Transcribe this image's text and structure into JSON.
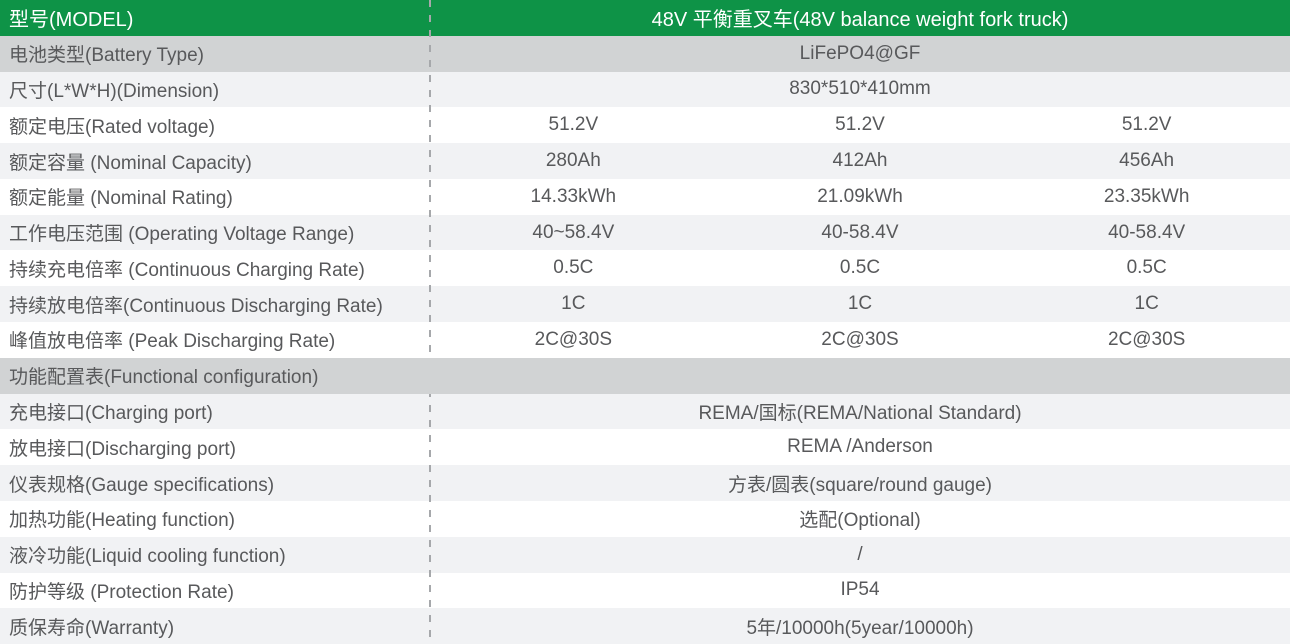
{
  "colors": {
    "header_green": "#0E9347",
    "section_row_gray": "#D1D3D4",
    "zebra_light_gray": "#F1F2F4",
    "zebra_white": "#FFFFFF",
    "text_gray": "#58595B",
    "header_text_white": "#FFFFFF",
    "divider_dash_gray": "#A6A8AB"
  },
  "table": {
    "header": {
      "label": "型号(MODEL)",
      "value": "48V 平衡重叉车(48V balance weight fork truck)"
    },
    "rows": [
      {
        "label": "电池类型(Battery Type)",
        "value": "LiFePO4@GF"
      },
      {
        "label": "尺寸(L*W*H)(Dimension)",
        "value": "830*510*410mm"
      },
      {
        "label": "额定电压(Rated voltage)",
        "values": [
          "51.2V",
          "51.2V",
          "51.2V"
        ]
      },
      {
        "label": "额定容量 (Nominal Capacity)",
        "values": [
          "280Ah",
          "412Ah",
          "456Ah"
        ]
      },
      {
        "label": "额定能量 (Nominal Rating)",
        "values": [
          "14.33kWh",
          "21.09kWh",
          "23.35kWh"
        ]
      },
      {
        "label": "工作电压范围 (Operating Voltage Range)",
        "values": [
          "40~58.4V",
          "40-58.4V",
          "40-58.4V"
        ]
      },
      {
        "label": "持续充电倍率 (Continuous Charging Rate)",
        "values": [
          "0.5C",
          "0.5C",
          "0.5C"
        ]
      },
      {
        "label": "持续放电倍率(Continuous Discharging Rate)",
        "values": [
          "1C",
          "1C",
          "1C"
        ]
      },
      {
        "label": "峰值放电倍率 (Peak Discharging Rate)",
        "values": [
          "2C@30S",
          "2C@30S",
          "2C@30S"
        ]
      },
      {
        "label": "功能配置表(Functional configuration)",
        "section": true
      },
      {
        "label": "充电接口(Charging port)",
        "value": "REMA/国标(REMA/National Standard)"
      },
      {
        "label": "放电接口(Discharging port)",
        "value": "REMA /Anderson"
      },
      {
        "label": "仪表规格(Gauge specifications)",
        "value": "方表/圆表(square/round gauge)"
      },
      {
        "label": "加热功能(Heating function)",
        "value": "选配(Optional)"
      },
      {
        "label": "液冷功能(Liquid cooling function)",
        "value": "/"
      },
      {
        "label": "防护等级 (Protection Rate)",
        "value": "IP54"
      },
      {
        "label": "质保寿命(Warranty)",
        "value": "5年/10000h(5year/10000h)"
      }
    ]
  }
}
